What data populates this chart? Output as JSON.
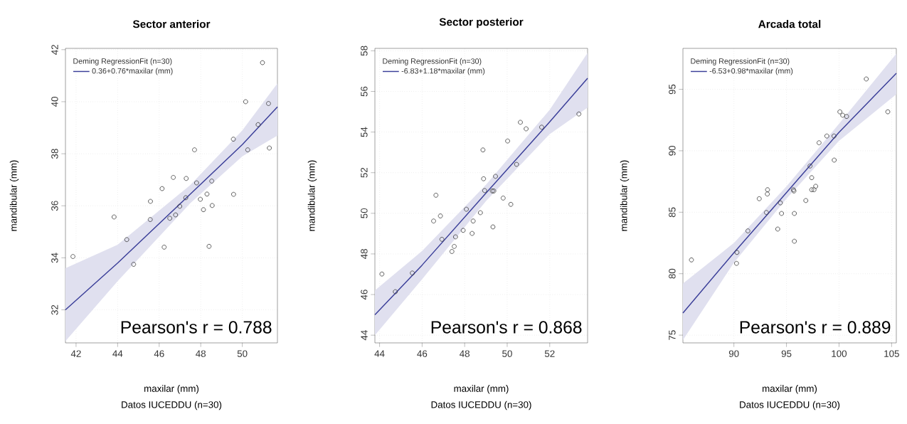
{
  "chart_data": [
    {
      "type": "scatter",
      "title": "Sector anterior",
      "xlabel": "maxilar (mm)",
      "ylabel": "mandibular (mm)",
      "legend_title": "Deming RegressionFit (n=30)",
      "annotations": [
        "Pearson's r = 0.788",
        "Datos IUCEDDU (n=30)"
      ],
      "xlim": [
        41.49,
        51.69
      ],
      "ylim": [
        30.73,
        42.05
      ],
      "xticks": [
        42,
        44,
        46,
        48,
        50
      ],
      "yticks": [
        32,
        34,
        36,
        38,
        40,
        42
      ],
      "grid": true,
      "legend": "top left",
      "marker": "circle",
      "series": [
        {
          "color": "#3a3a3a",
          "x": [
            41.85,
            43.83,
            44.44,
            44.77,
            45.58,
            45.57,
            46.14,
            46.24,
            46.51,
            46.68,
            46.79,
            46.99,
            47.28,
            47.3,
            47.7,
            47.8,
            47.98,
            48.13,
            48.3,
            48.4,
            48.53,
            48.55,
            49.57,
            49.58,
            50.16,
            50.26,
            50.76,
            50.97,
            51.26,
            51.3
          ],
          "values": [
            34.05,
            35.57,
            34.7,
            33.75,
            36.17,
            35.47,
            36.66,
            34.41,
            35.52,
            37.09,
            35.65,
            35.98,
            36.31,
            37.05,
            38.15,
            36.88,
            36.25,
            35.85,
            36.45,
            34.44,
            36.95,
            36.01,
            38.56,
            36.44,
            40.0,
            38.15,
            39.12,
            41.5,
            39.93,
            38.22
          ]
        },
        {
          "type": "line",
          "marker": "none",
          "name": "0.36+0.76*maxilar (mm)",
          "color": "#3b3f99",
          "x": [
            41.49,
            44,
            47.5,
            50,
            51.69
          ],
          "values": [
            32.0,
            33.8,
            36.45,
            38.35,
            39.8
          ],
          "lower": [
            30.8,
            33.1,
            36.1,
            37.9,
            38.7
          ],
          "upper": [
            33.6,
            34.5,
            36.8,
            38.9,
            40.7
          ]
        }
      ]
    },
    {
      "type": "scatter",
      "title": "Sector posterior",
      "xlabel": "maxilar (mm)",
      "ylabel": "mandibular (mm)",
      "legend_title": "Deming RegressionFit (n=30)",
      "annotations": [
        "Pearson's r = 0.868",
        "Datos IUCEDDU (n=30)"
      ],
      "xlim": [
        43.78,
        53.78
      ],
      "ylim": [
        43.62,
        58.12
      ],
      "xticks": [
        44,
        46,
        48,
        50,
        52
      ],
      "yticks": [
        44,
        46,
        48,
        50,
        52,
        54,
        56,
        58
      ],
      "grid": true,
      "legend": "top left",
      "marker": "circle",
      "series": [
        {
          "color": "#3a3a3a",
          "x": [
            44.11,
            44.74,
            45.54,
            46.54,
            46.65,
            46.86,
            46.93,
            47.4,
            47.51,
            47.57,
            47.93,
            48.08,
            48.35,
            48.4,
            48.74,
            48.86,
            48.89,
            48.94,
            49.3,
            49.33,
            49.37,
            49.45,
            49.81,
            50.02,
            50.17,
            50.44,
            50.62,
            50.89,
            51.62,
            53.37
          ],
          "values": [
            47.01,
            46.14,
            47.06,
            49.62,
            50.89,
            49.87,
            48.72,
            48.12,
            48.37,
            48.84,
            49.16,
            50.2,
            49.01,
            49.62,
            50.03,
            53.12,
            51.7,
            51.12,
            51.1,
            49.33,
            51.1,
            51.82,
            50.75,
            53.56,
            50.44,
            52.41,
            54.48,
            54.16,
            54.24,
            54.89
          ]
        },
        {
          "type": "line",
          "marker": "none",
          "name": "-6.83+1.18*maxilar (mm)",
          "color": "#3b3f99",
          "x": [
            43.78,
            46,
            49,
            52,
            53.78
          ],
          "values": [
            45.0,
            47.45,
            50.99,
            54.5,
            56.65
          ],
          "lower": [
            44.0,
            46.75,
            50.6,
            53.9,
            55.2
          ],
          "upper": [
            46.2,
            48.15,
            51.4,
            55.1,
            57.9
          ]
        }
      ]
    },
    {
      "type": "scatter",
      "title": "Arcada total",
      "xlabel": "maxilar (mm)",
      "ylabel": "mandibular (mm)",
      "legend_title": "Deming RegressionFit (n=30)",
      "annotations": [
        "Pearson's r = 0.889",
        "Datos IUCEDDU (n=30)"
      ],
      "xlim": [
        85.15,
        105.45
      ],
      "ylim": [
        74.37,
        98.33
      ],
      "xticks": [
        90,
        95,
        100,
        105
      ],
      "yticks": [
        75,
        80,
        85,
        90,
        95
      ],
      "grid": true,
      "legend": "top left",
      "marker": "circle",
      "series": [
        {
          "color": "#3a3a3a",
          "x": [
            85.96,
            90.25,
            90.29,
            91.33,
            92.41,
            93.09,
            93.18,
            93.2,
            94.17,
            94.42,
            94.53,
            95.66,
            95.71,
            95.75,
            95.75,
            96.84,
            97.24,
            97.4,
            97.4,
            97.62,
            97.78,
            98.1,
            98.84,
            99.52,
            99.54,
            100.08,
            100.35,
            100.72,
            102.59,
            104.64
          ],
          "values": [
            81.12,
            80.84,
            81.73,
            83.48,
            86.1,
            84.98,
            86.48,
            86.83,
            83.63,
            85.76,
            84.9,
            86.83,
            86.73,
            84.9,
            82.64,
            85.95,
            88.76,
            87.81,
            86.83,
            86.83,
            87.11,
            90.65,
            91.2,
            91.2,
            89.24,
            93.17,
            92.89,
            92.79,
            95.84,
            93.17
          ]
        },
        {
          "type": "line",
          "marker": "none",
          "name": "-6.53+0.98*maxilar (mm)",
          "color": "#3b3f99",
          "x": [
            85.15,
            90,
            95,
            100,
            105.45
          ],
          "values": [
            76.8,
            81.7,
            86.6,
            91.5,
            96.3
          ],
          "lower": [
            74.6,
            80.9,
            86.1,
            90.8,
            94.6
          ],
          "upper": [
            79.2,
            82.5,
            87.1,
            92.2,
            97.9
          ]
        }
      ]
    }
  ]
}
